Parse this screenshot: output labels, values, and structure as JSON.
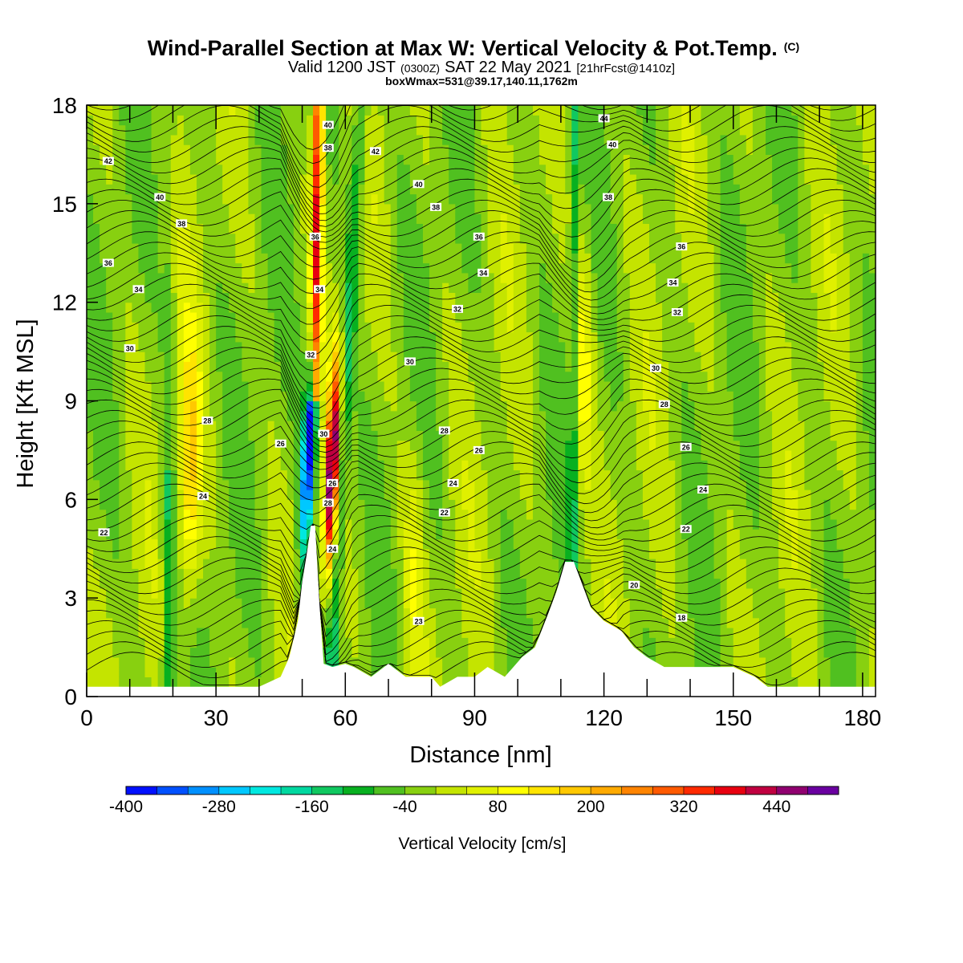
{
  "chart_data": {
    "type": "heatmap",
    "title": "Wind-Parallel Section at Max W: Vertical Velocity & Pot.Temp.",
    "title_mark": "(C)",
    "subtitle_main": "Valid 1200 JST",
    "subtitle_utc": "(0300Z)",
    "subtitle_date": "SAT 22 May 2021",
    "subtitle_fcst": "[21hrFcst@1410z]",
    "subtitle2": "boxWmax=531@39.17,140.11,1762m",
    "xlabel": "Distance [nm]",
    "ylabel": "Height [Kft MSL]",
    "xlim": [
      0,
      183
    ],
    "ylim": [
      0,
      18
    ],
    "xticks": [
      "0",
      "30",
      "60",
      "90",
      "120",
      "150",
      "180"
    ],
    "yticks": [
      "0",
      "3",
      "6",
      "9",
      "12",
      "15",
      "18"
    ],
    "grid": false,
    "colorbar": {
      "label": "Vertical Velocity [cm/s]",
      "min": -400,
      "max": 480,
      "step": 40,
      "ticks": [
        "-400",
        "-280",
        "-160",
        "-40",
        "80",
        "200",
        "320",
        "440"
      ],
      "colors": [
        "#0010ff",
        "#0050ff",
        "#0090ff",
        "#00c8ff",
        "#00e8e0",
        "#00d8a0",
        "#10c860",
        "#08b020",
        "#50c020",
        "#88d010",
        "#c4e400",
        "#e0f000",
        "#ffff00",
        "#ffe400",
        "#ffc800",
        "#ffaa00",
        "#ff8400",
        "#ff5a00",
        "#ff2a00",
        "#e80010",
        "#c00040",
        "#900070",
        "#6a00a0"
      ]
    },
    "terrain": [
      [
        0,
        0.3
      ],
      [
        20,
        0.3
      ],
      [
        40,
        0.3
      ],
      [
        45,
        0.6
      ],
      [
        47,
        1.2
      ],
      [
        49,
        2.3
      ],
      [
        50,
        3.5
      ],
      [
        51,
        4.3
      ],
      [
        52,
        5.2
      ],
      [
        53,
        5.2
      ],
      [
        54,
        2.8
      ],
      [
        55,
        1.0
      ],
      [
        57,
        0.9
      ],
      [
        60,
        1.0
      ],
      [
        62,
        0.9
      ],
      [
        66,
        0.6
      ],
      [
        70,
        1.0
      ],
      [
        74,
        0.6
      ],
      [
        80,
        0.6
      ],
      [
        82,
        0.3
      ],
      [
        86,
        0.6
      ],
      [
        90,
        0.6
      ],
      [
        93,
        0.9
      ],
      [
        97,
        0.6
      ],
      [
        101,
        1.2
      ],
      [
        104,
        1.5
      ],
      [
        107,
        2.5
      ],
      [
        109,
        3.2
      ],
      [
        111,
        4.1
      ],
      [
        113,
        4.1
      ],
      [
        115,
        3.4
      ],
      [
        117,
        2.7
      ],
      [
        120,
        2.3
      ],
      [
        124,
        2.0
      ],
      [
        127,
        1.5
      ],
      [
        130,
        1.2
      ],
      [
        134,
        0.9
      ],
      [
        140,
        0.9
      ],
      [
        150,
        0.9
      ],
      [
        155,
        0.6
      ],
      [
        158,
        0.3
      ],
      [
        183,
        0.3
      ]
    ],
    "ww_field": [
      {
        "x": 51.5,
        "y": 7.5,
        "value": -400
      },
      {
        "x": 57,
        "y": 7,
        "value": 531
      },
      {
        "x": 76,
        "y": 4,
        "value": 80
      },
      {
        "x": 115,
        "y": 10,
        "value": 120
      },
      {
        "x": 24,
        "y": 7,
        "value": 180
      }
    ],
    "contour_labels": [
      {
        "x": 5,
        "y": 16.3,
        "value": "42"
      },
      {
        "x": 17,
        "y": 15.2,
        "value": "40"
      },
      {
        "x": 22,
        "y": 14.4,
        "value": "38"
      },
      {
        "x": 5,
        "y": 13.2,
        "value": "36"
      },
      {
        "x": 12,
        "y": 12.4,
        "value": "34"
      },
      {
        "x": 10,
        "y": 10.6,
        "value": "30"
      },
      {
        "x": 28,
        "y": 8.4,
        "value": "28"
      },
      {
        "x": 27,
        "y": 6.1,
        "value": "24"
      },
      {
        "x": 4,
        "y": 5,
        "value": "22"
      },
      {
        "x": 56,
        "y": 17.4,
        "value": "40"
      },
      {
        "x": 56,
        "y": 16.7,
        "value": "38"
      },
      {
        "x": 53,
        "y": 14,
        "value": "36"
      },
      {
        "x": 54,
        "y": 12.4,
        "value": "34"
      },
      {
        "x": 52,
        "y": 10.4,
        "value": "32"
      },
      {
        "x": 55,
        "y": 8,
        "value": "30"
      },
      {
        "x": 57,
        "y": 6.5,
        "value": "26"
      },
      {
        "x": 56,
        "y": 5.9,
        "value": "28"
      },
      {
        "x": 57,
        "y": 4.5,
        "value": "24"
      },
      {
        "x": 45,
        "y": 7.7,
        "value": "26"
      },
      {
        "x": 67,
        "y": 16.6,
        "value": "42"
      },
      {
        "x": 77,
        "y": 15.6,
        "value": "40"
      },
      {
        "x": 81,
        "y": 14.9,
        "value": "38"
      },
      {
        "x": 91,
        "y": 14,
        "value": "36"
      },
      {
        "x": 92,
        "y": 12.9,
        "value": "34"
      },
      {
        "x": 86,
        "y": 11.8,
        "value": "32"
      },
      {
        "x": 75,
        "y": 10.2,
        "value": "30"
      },
      {
        "x": 83,
        "y": 8.1,
        "value": "28"
      },
      {
        "x": 91,
        "y": 7.5,
        "value": "26"
      },
      {
        "x": 85,
        "y": 6.5,
        "value": "24"
      },
      {
        "x": 83,
        "y": 5.6,
        "value": "22"
      },
      {
        "x": 77,
        "y": 2.3,
        "value": "23"
      },
      {
        "x": 120,
        "y": 17.6,
        "value": "44"
      },
      {
        "x": 122,
        "y": 16.8,
        "value": "40"
      },
      {
        "x": 121,
        "y": 15.2,
        "value": "38"
      },
      {
        "x": 138,
        "y": 13.7,
        "value": "36"
      },
      {
        "x": 136,
        "y": 12.6,
        "value": "34"
      },
      {
        "x": 137,
        "y": 11.7,
        "value": "32"
      },
      {
        "x": 132,
        "y": 10,
        "value": "30"
      },
      {
        "x": 134,
        "y": 8.9,
        "value": "28"
      },
      {
        "x": 139,
        "y": 7.6,
        "value": "26"
      },
      {
        "x": 143,
        "y": 6.3,
        "value": "24"
      },
      {
        "x": 139,
        "y": 5.1,
        "value": "22"
      },
      {
        "x": 127,
        "y": 3.4,
        "value": "20"
      },
      {
        "x": 138,
        "y": 2.4,
        "value": "18"
      }
    ]
  }
}
